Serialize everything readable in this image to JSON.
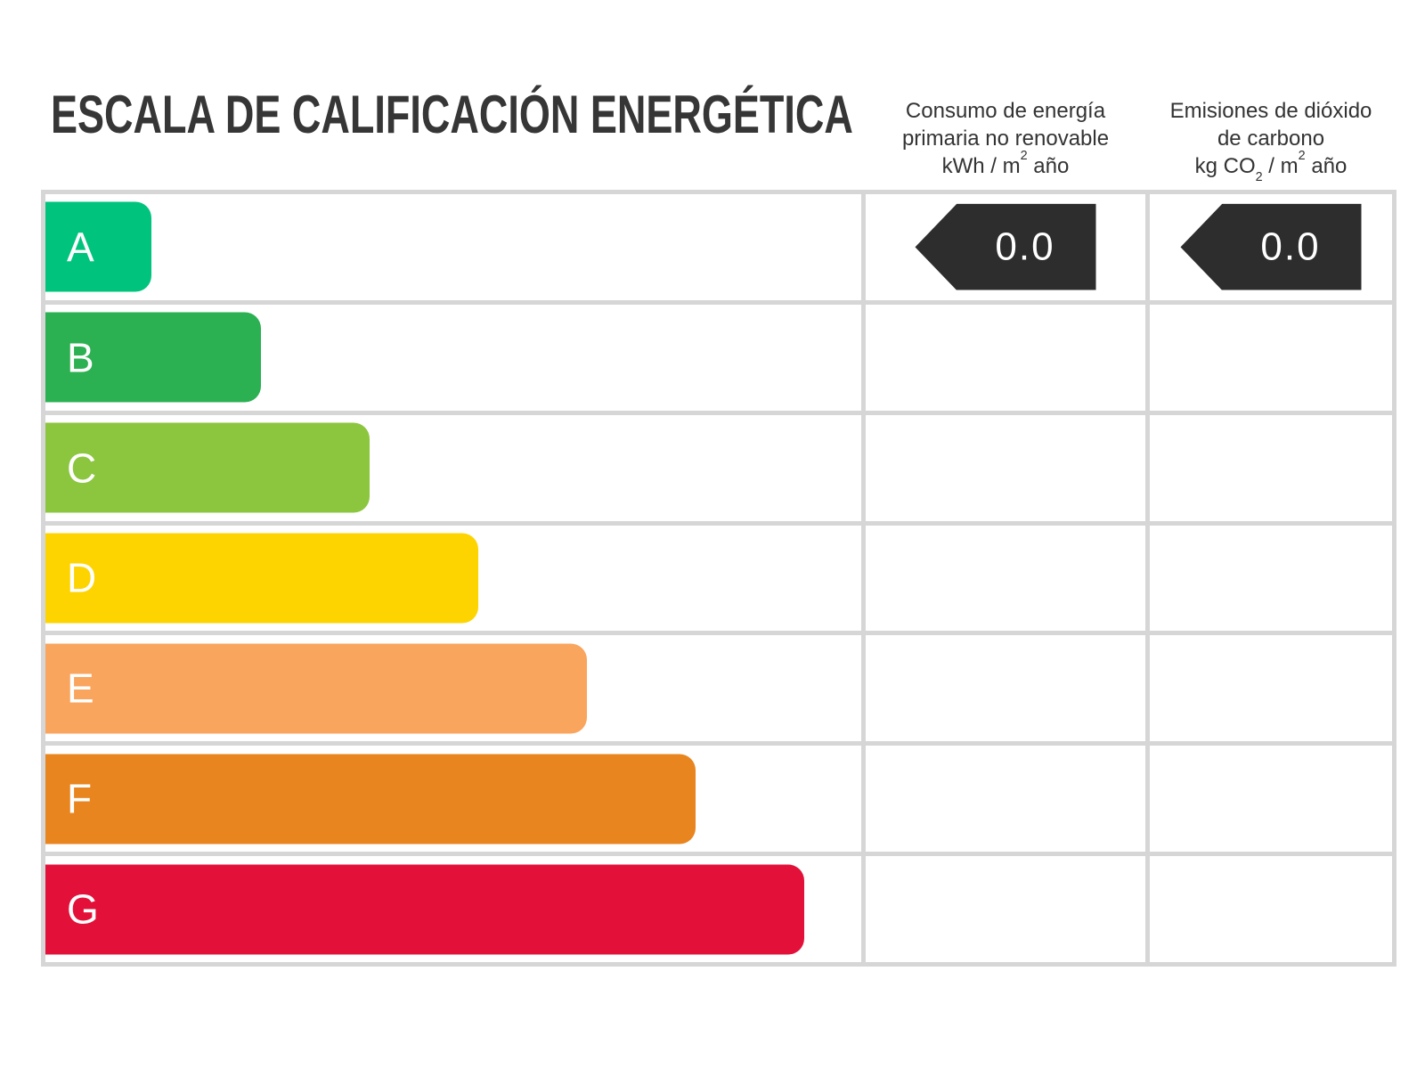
{
  "title": "ESCALA DE CALIFICACIÓN ENERGÉTICA",
  "columns": {
    "consumo": {
      "line1": "Consumo de energía",
      "line2": "primaria no renovable",
      "unit_prefix": "kWh / m",
      "unit_sup": "2",
      "unit_suffix": " año"
    },
    "emisiones": {
      "line1": "Emisiones de dióxido",
      "line2": "de carbono",
      "unit_prefix": "kg CO",
      "unit_sub": "2",
      "unit_mid": " / m",
      "unit_sup": "2",
      "unit_suffix": " año"
    }
  },
  "scale": {
    "bands": [
      {
        "letter": "A",
        "color": "#00c47e",
        "width_pct": 13.0
      },
      {
        "letter": "B",
        "color": "#2bb052",
        "width_pct": 26.4
      },
      {
        "letter": "C",
        "color": "#8cc63f",
        "width_pct": 39.7
      },
      {
        "letter": "D",
        "color": "#fdd400",
        "width_pct": 53.1
      },
      {
        "letter": "E",
        "color": "#f9a55e",
        "width_pct": 66.4
      },
      {
        "letter": "F",
        "color": "#e9851f",
        "width_pct": 79.7
      },
      {
        "letter": "G",
        "color": "#e31139",
        "width_pct": 93.0
      }
    ]
  },
  "indicators": {
    "arrow_color": "#2d2d2d",
    "consumo_value": "0.0",
    "emisiones_value": "0.0"
  },
  "grid_line_color": "#d6d6d6",
  "chart_data": {
    "type": "bar",
    "orientation": "horizontal",
    "title": "ESCALA DE CALIFICACIÓN ENERGÉTICA",
    "categories": [
      "A",
      "B",
      "C",
      "D",
      "E",
      "F",
      "G"
    ],
    "values": [
      13.0,
      26.4,
      39.7,
      53.1,
      66.4,
      79.7,
      93.0
    ],
    "values_unit": "percent of rating column width",
    "bar_colors": [
      "#00c47e",
      "#2bb052",
      "#8cc63f",
      "#fdd400",
      "#f9a55e",
      "#e9851f",
      "#e31139"
    ],
    "columns": [
      "Consumo de energía primaria no renovable kWh / m2 año",
      "Emisiones de dióxido de carbono kg CO2 / m2 año"
    ],
    "indicators": [
      {
        "column": "Consumo de energía primaria no renovable kWh / m2 año",
        "row": "A",
        "value": 0.0
      },
      {
        "column": "Emisiones de dióxido de carbono kg CO2 / m2 año",
        "row": "A",
        "value": 0.0
      }
    ],
    "legend": false,
    "grid": true
  }
}
